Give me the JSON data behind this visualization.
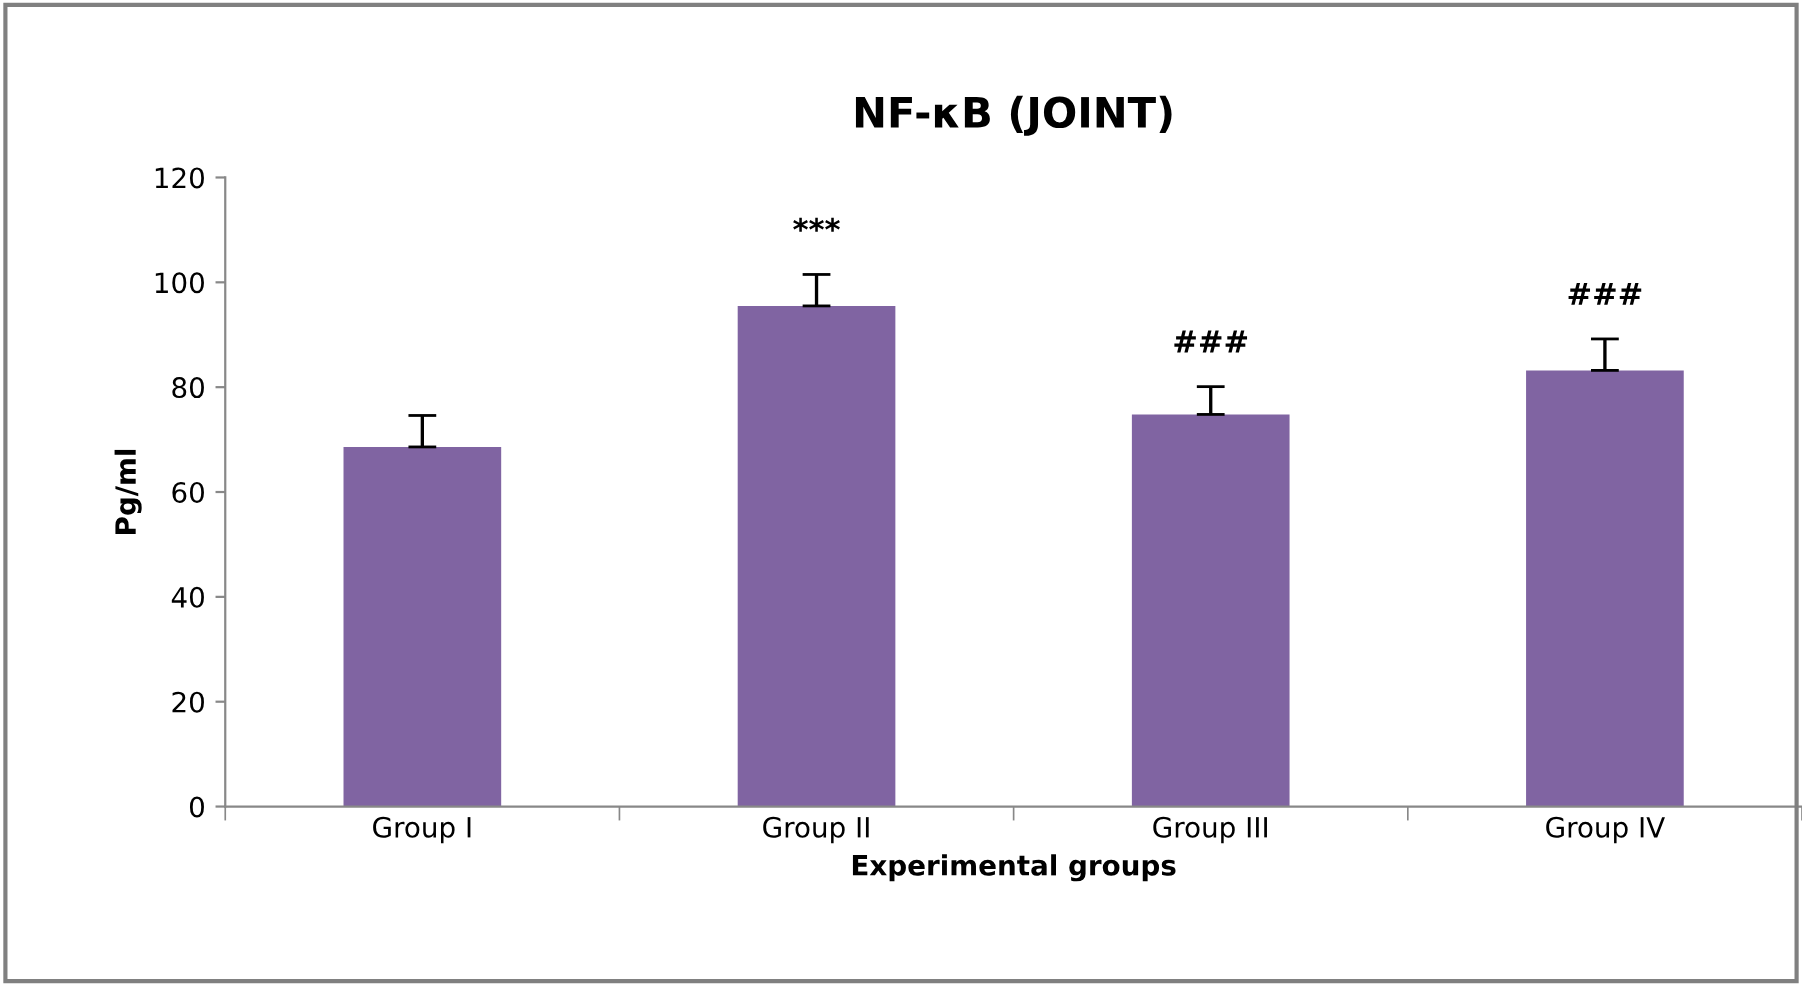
{
  "chart_data": {
    "type": "bar",
    "title": "NF-κB (JOINT)",
    "xlabel": "Experimental groups",
    "ylabel": "Pg/ml",
    "categories": [
      "Group I",
      "Group II",
      "Group III",
      "Group IV"
    ],
    "values": [
      68.6,
      95.5,
      74.8,
      83.2
    ],
    "errors": [
      6,
      6,
      5.3,
      6
    ],
    "color": "#8064a2",
    "ylim": [
      0,
      120
    ],
    "yticks": [
      0,
      20,
      40,
      60,
      80,
      100,
      120
    ],
    "grid": false,
    "value_labels": [
      null,
      "***",
      "###",
      "###"
    ]
  }
}
